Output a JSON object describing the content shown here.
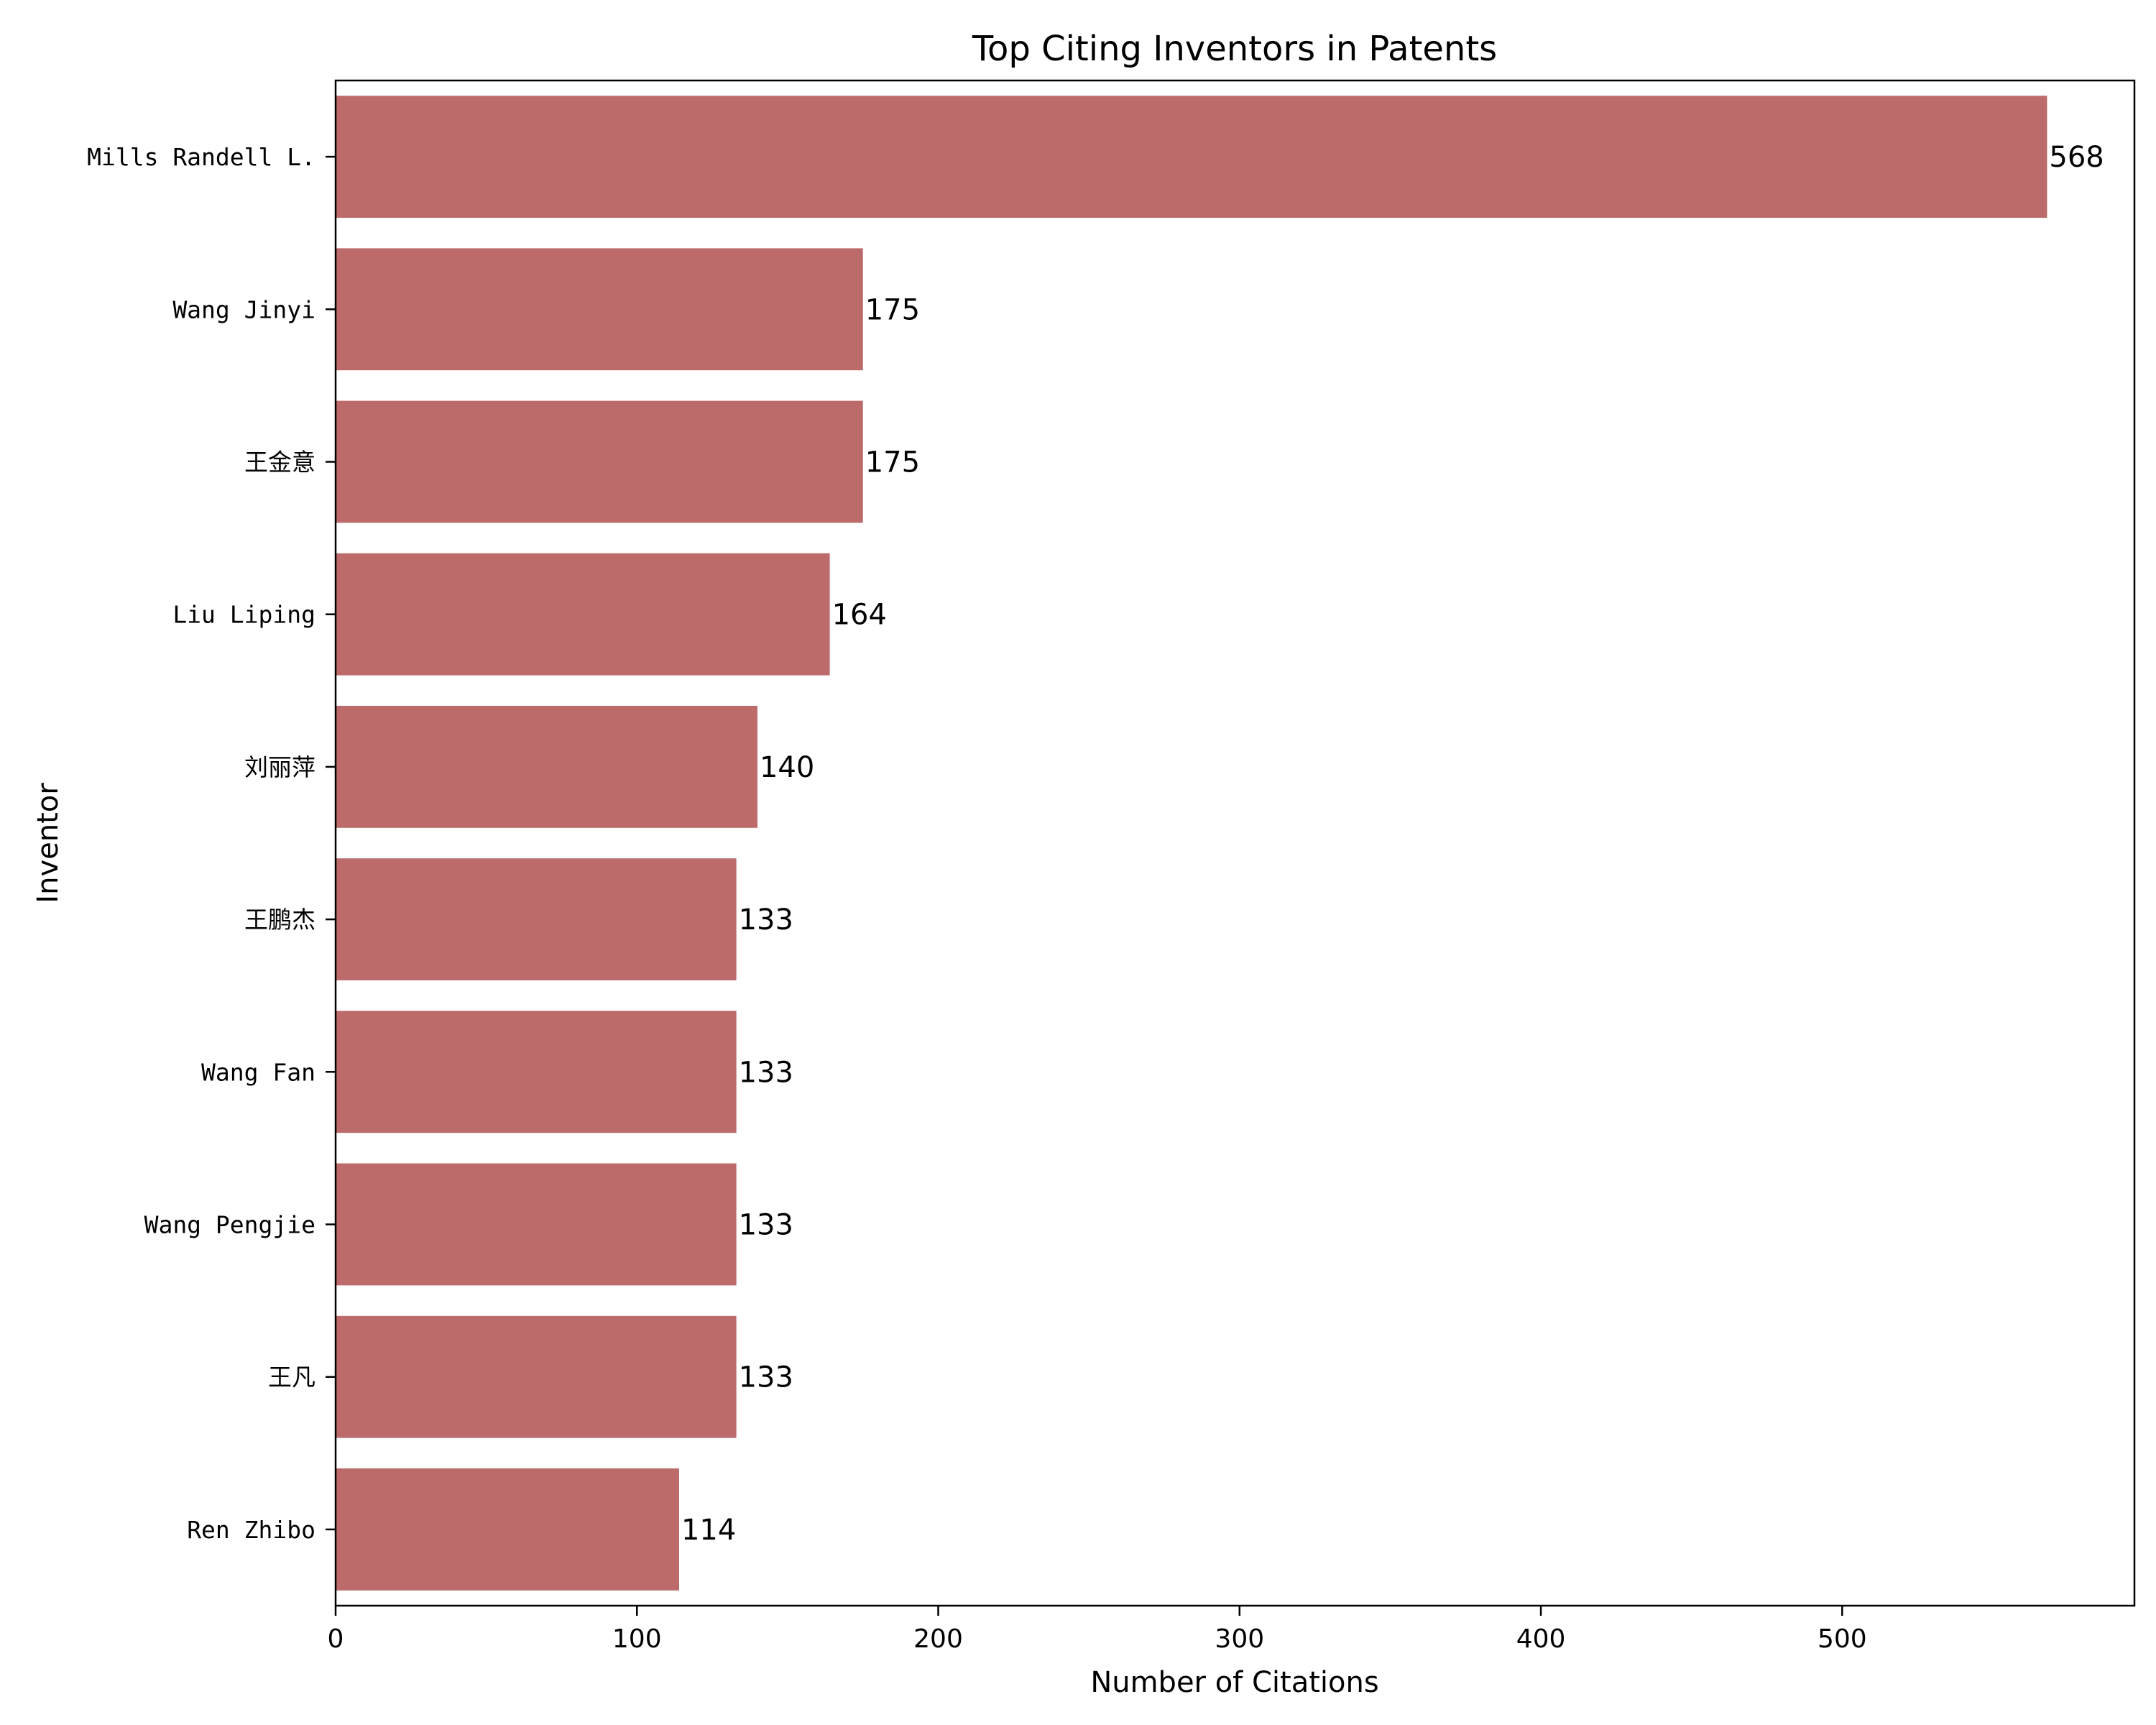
{
  "chart_data": {
    "type": "bar",
    "orientation": "horizontal",
    "title": "Top Citing Inventors in Patents",
    "xlabel": "Number of Citations",
    "ylabel": "Inventor",
    "categories": [
      "Mills Randell L.",
      "Wang Jinyi",
      "王金意",
      "Liu Liping",
      "刘丽萍",
      "王鹏杰",
      "Wang Fan",
      "Wang Pengjie",
      "王凡",
      "Ren Zhibo"
    ],
    "values": [
      568,
      175,
      175,
      164,
      140,
      133,
      133,
      133,
      133,
      114
    ],
    "xlim": [
      0,
      597
    ],
    "xticks": [
      0,
      100,
      200,
      300,
      400,
      500
    ],
    "bar_color": "#bc6a6a",
    "grid": false,
    "legend": "none"
  }
}
